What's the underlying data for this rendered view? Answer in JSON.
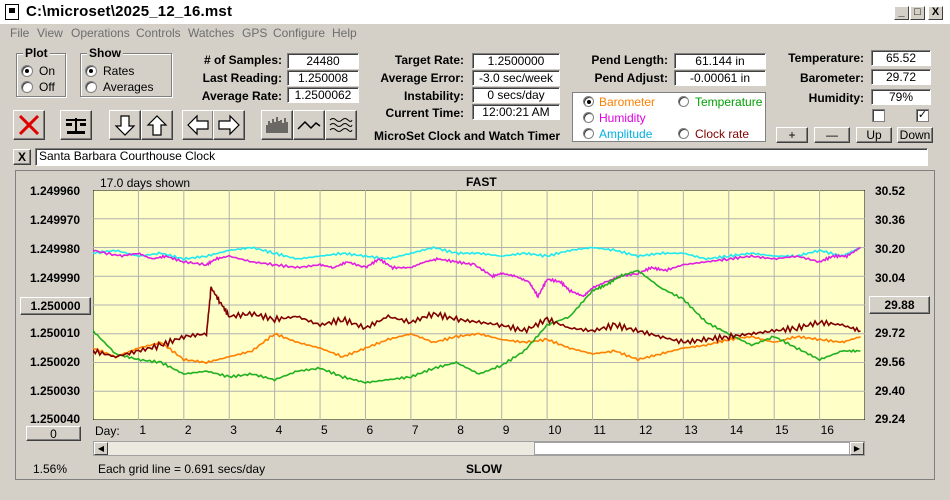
{
  "window": {
    "title": "C:\\microset\\2025_12_16.mst",
    "controls": {
      "minimize": "_",
      "maximize": "□",
      "close": "X"
    }
  },
  "menu": [
    "File",
    "View",
    "Operations",
    "Controls",
    "Watches",
    "GPS",
    "Configure",
    "Help"
  ],
  "plot_group": {
    "label": "Plot",
    "options": [
      "On",
      "Off"
    ],
    "selected": "On"
  },
  "show_group": {
    "label": "Show",
    "options": [
      "Rates",
      "Averages"
    ],
    "selected": "Rates"
  },
  "stats": {
    "num_samples_label": "# of Samples:",
    "num_samples": "24480",
    "last_reading_label": "Last Reading:",
    "last_reading": "1.250008",
    "average_rate_label": "Average Rate:",
    "average_rate": "1.2500062",
    "target_rate_label": "Target Rate:",
    "target_rate": "1.2500000",
    "average_error_label": "Average Error:",
    "average_error": "-3.0 sec/week",
    "instability_label": "Instability:",
    "instability": "0 secs/day",
    "current_time_label": "Current Time:",
    "current_time": "12:00:21 AM",
    "pend_length_label": "Pend Length:",
    "pend_length": "61.144 in",
    "pend_adjust_label": "Pend Adjust:",
    "pend_adjust": "-0.00061 in",
    "temperature_label": "Temperature:",
    "temperature": "65.52",
    "barometer_label": "Barometer:",
    "barometer": "29.72",
    "humidity_label": "Humidity:",
    "humidity": "79%"
  },
  "app_caption": "MicroSet Clock and Watch Timer",
  "sensor_select": {
    "selected": "Barometer",
    "options": [
      {
        "label": "Barometer",
        "color": "#ff8000"
      },
      {
        "label": "Temperature",
        "color": "#00a000"
      },
      {
        "label": "Humidity",
        "color": "#e000e0"
      },
      {
        "label": "Amplitude",
        "color": "#00b0e0"
      },
      {
        "label": "Clock rate",
        "color": "#800000"
      }
    ]
  },
  "scale_buttons": {
    "plus": "+",
    "minus": "—",
    "up": "Up",
    "down": "Down"
  },
  "checkboxes": [
    false,
    true
  ],
  "watch_name": "Santa Barbara Courthouse Clock",
  "watch_close": "X",
  "chart_data": {
    "type": "line",
    "title_top": "FAST",
    "title_bottom": "SLOW",
    "days_shown": "17.0 days shown",
    "grid_note": "Each grid line = 0.691 secs/day",
    "left_axis_ticks": [
      "1.249960",
      "1.249970",
      "1.249980",
      "1.249990",
      "1.250000",
      "1.250010",
      "1.250020",
      "1.250030",
      "1.250040"
    ],
    "left_axis_button": "1.250000",
    "right_axis_ticks": [
      "30.52",
      "30.36",
      "30.20",
      "30.04",
      "29.88",
      "29.72",
      "29.56",
      "29.40",
      "29.24"
    ],
    "right_axis_button": "29.88",
    "x_label": "Day:",
    "x_ticks": [
      "1",
      "2",
      "3",
      "4",
      "5",
      "6",
      "7",
      "8",
      "9",
      "10",
      "11",
      "12",
      "13",
      "14",
      "15",
      "16"
    ],
    "x_range": [
      0,
      17
    ],
    "left_range": [
      1.24996,
      1.25004
    ],
    "right_range": [
      29.24,
      30.52
    ],
    "bottom_left_button": "0",
    "percent": "1.56%",
    "series": [
      {
        "name": "Amplitude",
        "color": "#20e8f0",
        "points": [
          [
            0,
            1.249982
          ],
          [
            0.5,
            1.249981
          ],
          [
            1,
            1.249983
          ],
          [
            1.5,
            1.249982
          ],
          [
            2,
            1.249984
          ],
          [
            2.5,
            1.249983
          ],
          [
            3,
            1.249981
          ],
          [
            3.5,
            1.24998
          ],
          [
            4,
            1.249982
          ],
          [
            4.5,
            1.249984
          ],
          [
            5,
            1.249983
          ],
          [
            5.5,
            1.249982
          ],
          [
            6,
            1.249983
          ],
          [
            6.5,
            1.249984
          ],
          [
            7,
            1.249982
          ],
          [
            7.5,
            1.24998
          ],
          [
            8,
            1.249982
          ],
          [
            8.5,
            1.249982
          ],
          [
            9,
            1.249983
          ],
          [
            9.5,
            1.249982
          ],
          [
            10,
            1.249983
          ],
          [
            10.5,
            1.249981
          ],
          [
            11,
            1.24998
          ],
          [
            11.5,
            1.249981
          ],
          [
            12,
            1.249983
          ],
          [
            12.5,
            1.249982
          ],
          [
            13,
            1.249982
          ],
          [
            13.5,
            1.249984
          ],
          [
            14,
            1.249983
          ],
          [
            14.5,
            1.249982
          ],
          [
            15,
            1.249983
          ],
          [
            15.5,
            1.249983
          ],
          [
            16,
            1.249981
          ],
          [
            16.5,
            1.249983
          ],
          [
            16.9,
            1.24998
          ]
        ]
      },
      {
        "name": "Humidity",
        "color": "#e020e0",
        "points": [
          [
            0,
            1.249981
          ],
          [
            0.6,
            1.249983
          ],
          [
            1,
            1.249982
          ],
          [
            1.3,
            1.249984
          ],
          [
            1.6,
            1.249983
          ],
          [
            2,
            1.249985
          ],
          [
            2.5,
            1.249986
          ],
          [
            2.7,
            1.249984
          ],
          [
            3,
            1.249983
          ],
          [
            3.5,
            1.249985
          ],
          [
            4,
            1.249986
          ],
          [
            4.5,
            1.249987
          ],
          [
            5,
            1.249986
          ],
          [
            5.3,
            1.249987
          ],
          [
            5.6,
            1.249985
          ],
          [
            6,
            1.249987
          ],
          [
            6.3,
            1.249984
          ],
          [
            6.6,
            1.249987
          ],
          [
            7,
            1.249987
          ],
          [
            7.3,
            1.249985
          ],
          [
            7.6,
            1.249984
          ],
          [
            8,
            1.249985
          ],
          [
            8.4,
            1.249986
          ],
          [
            8.8,
            1.24999
          ],
          [
            9,
            1.249989
          ],
          [
            9.3,
            1.24999
          ],
          [
            9.6,
            1.249992
          ],
          [
            9.8,
            1.249997
          ],
          [
            10,
            1.249991
          ],
          [
            10.3,
            1.249992
          ],
          [
            10.5,
            1.249995
          ],
          [
            10.8,
            1.249997
          ],
          [
            11,
            1.249994
          ],
          [
            11.3,
            1.249992
          ],
          [
            11.6,
            1.24999
          ],
          [
            12,
            1.249989
          ],
          [
            12.3,
            1.249987
          ],
          [
            12.6,
            1.249988
          ],
          [
            13,
            1.249986
          ],
          [
            13.5,
            1.249985
          ],
          [
            14,
            1.249984
          ],
          [
            14.5,
            1.249983
          ],
          [
            15,
            1.249984
          ],
          [
            15.5,
            1.249983
          ],
          [
            16,
            1.249985
          ],
          [
            16.3,
            1.249983
          ],
          [
            16.6,
            1.249983
          ],
          [
            16.9,
            1.24998
          ]
        ]
      },
      {
        "name": "Barometer",
        "color": "#ff8000",
        "points": [
          [
            0,
            1.250015
          ],
          [
            0.5,
            1.250018
          ],
          [
            1,
            1.250015
          ],
          [
            1.5,
            1.250013
          ],
          [
            2,
            1.250019
          ],
          [
            2.5,
            1.25002
          ],
          [
            3,
            1.250018
          ],
          [
            3.5,
            1.250016
          ],
          [
            4,
            1.25001
          ],
          [
            4.5,
            1.250013
          ],
          [
            5,
            1.250015
          ],
          [
            5.5,
            1.250018
          ],
          [
            6,
            1.250015
          ],
          [
            6.5,
            1.250012
          ],
          [
            7,
            1.25001
          ],
          [
            7.5,
            1.250013
          ],
          [
            8,
            1.250011
          ],
          [
            8.5,
            1.25001
          ],
          [
            9,
            1.250012
          ],
          [
            9.5,
            1.250013
          ],
          [
            10,
            1.250012
          ],
          [
            10.5,
            1.250015
          ],
          [
            11,
            1.250017
          ],
          [
            11.5,
            1.250016
          ],
          [
            12,
            1.250019
          ],
          [
            12.5,
            1.250017
          ],
          [
            13,
            1.250015
          ],
          [
            13.5,
            1.250014
          ],
          [
            14,
            1.250012
          ],
          [
            14.5,
            1.250011
          ],
          [
            15,
            1.250013
          ],
          [
            15.5,
            1.250011
          ],
          [
            16,
            1.250012
          ],
          [
            16.5,
            1.250013
          ],
          [
            16.9,
            1.250011
          ]
        ]
      },
      {
        "name": "Temperature",
        "color": "#20b020",
        "points": [
          [
            0,
            1.250009
          ],
          [
            0.5,
            1.250017
          ],
          [
            1,
            1.250019
          ],
          [
            1.5,
            1.25002
          ],
          [
            2,
            1.250024
          ],
          [
            2.5,
            1.250023
          ],
          [
            3,
            1.250025
          ],
          [
            3.5,
            1.250024
          ],
          [
            4,
            1.250026
          ],
          [
            4.5,
            1.250023
          ],
          [
            5,
            1.250022
          ],
          [
            5.5,
            1.250025
          ],
          [
            6,
            1.250027
          ],
          [
            6.5,
            1.250026
          ],
          [
            7,
            1.250025
          ],
          [
            7.5,
            1.250022
          ],
          [
            8,
            1.25002
          ],
          [
            8.5,
            1.250024
          ],
          [
            9,
            1.250021
          ],
          [
            9.5,
            1.250016
          ],
          [
            10,
            1.250007
          ],
          [
            10.5,
            1.250004
          ],
          [
            11,
            1.249995
          ],
          [
            11.3,
            1.249993
          ],
          [
            11.6,
            1.24999
          ],
          [
            12,
            1.249988
          ],
          [
            12.5,
            1.249994
          ],
          [
            13,
            1.249998
          ],
          [
            13.5,
            1.250006
          ],
          [
            14,
            1.25001
          ],
          [
            14.5,
            1.250014
          ],
          [
            15,
            1.250011
          ],
          [
            15.5,
            1.250015
          ],
          [
            16,
            1.250019
          ],
          [
            16.5,
            1.250016
          ],
          [
            16.9,
            1.250016
          ]
        ]
      },
      {
        "name": "Clock rate",
        "color": "#800000",
        "points": [
          [
            0,
            1.250016
          ],
          [
            0.5,
            1.250018
          ],
          [
            1,
            1.250016
          ],
          [
            1.5,
            1.250014
          ],
          [
            2,
            1.250011
          ],
          [
            2.5,
            1.25001
          ],
          [
            2.6,
            1.249994
          ],
          [
            2.8,
            1.249999
          ],
          [
            3,
            1.250004
          ],
          [
            3.5,
            1.250003
          ],
          [
            4,
            1.250005
          ],
          [
            4.5,
            1.250004
          ],
          [
            5,
            1.250007
          ],
          [
            5.5,
            1.250005
          ],
          [
            6,
            1.250008
          ],
          [
            6.5,
            1.250004
          ],
          [
            7,
            1.250006
          ],
          [
            7.5,
            1.250003
          ],
          [
            8,
            1.250005
          ],
          [
            8.5,
            1.250006
          ],
          [
            9,
            1.250007
          ],
          [
            9.5,
            1.250009
          ],
          [
            10,
            1.250005
          ],
          [
            10.5,
            1.250008
          ],
          [
            11,
            1.250009
          ],
          [
            11.5,
            1.250007
          ],
          [
            12,
            1.250009
          ],
          [
            12.5,
            1.250011
          ],
          [
            13,
            1.250013
          ],
          [
            13.5,
            1.250012
          ],
          [
            14,
            1.250011
          ],
          [
            14.5,
            1.25001
          ],
          [
            15,
            1.250009
          ],
          [
            15.5,
            1.250008
          ],
          [
            16,
            1.250006
          ],
          [
            16.5,
            1.250007
          ],
          [
            16.9,
            1.250009
          ]
        ]
      }
    ]
  }
}
